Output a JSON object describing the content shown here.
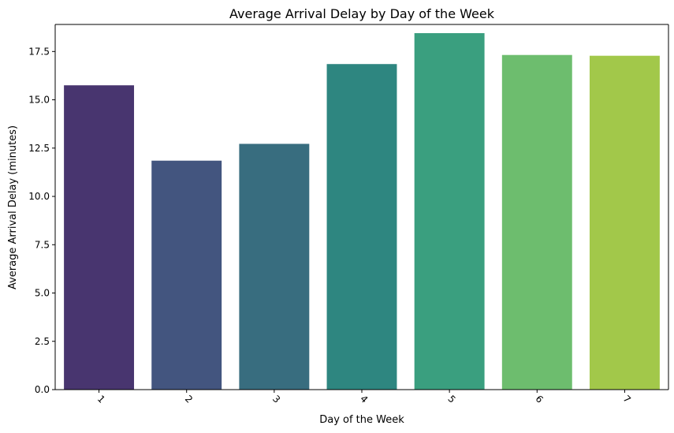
{
  "chart_data": {
    "type": "bar",
    "title": "Average Arrival Delay by Day of the Week",
    "xlabel": "Day of the Week",
    "ylabel": "Average Arrival Delay (minutes)",
    "categories": [
      "1",
      "2",
      "3",
      "4",
      "5",
      "6",
      "7"
    ],
    "values": [
      15.75,
      11.85,
      12.72,
      16.85,
      18.45,
      17.32,
      17.28
    ],
    "colors": [
      "#48356f",
      "#43557f",
      "#386d7f",
      "#2e8680",
      "#3a9f7f",
      "#6dbd6e",
      "#a2c84a"
    ],
    "ylim": [
      0,
      18.9
    ],
    "yticks": [
      "0.0",
      "2.5",
      "5.0",
      "7.5",
      "10.0",
      "12.5",
      "15.0",
      "17.5"
    ],
    "ytick_values": [
      0,
      2.5,
      5,
      7.5,
      10,
      12.5,
      15,
      17.5
    ],
    "grid": false,
    "legend": "none",
    "xtick_rotation_deg": 45
  }
}
